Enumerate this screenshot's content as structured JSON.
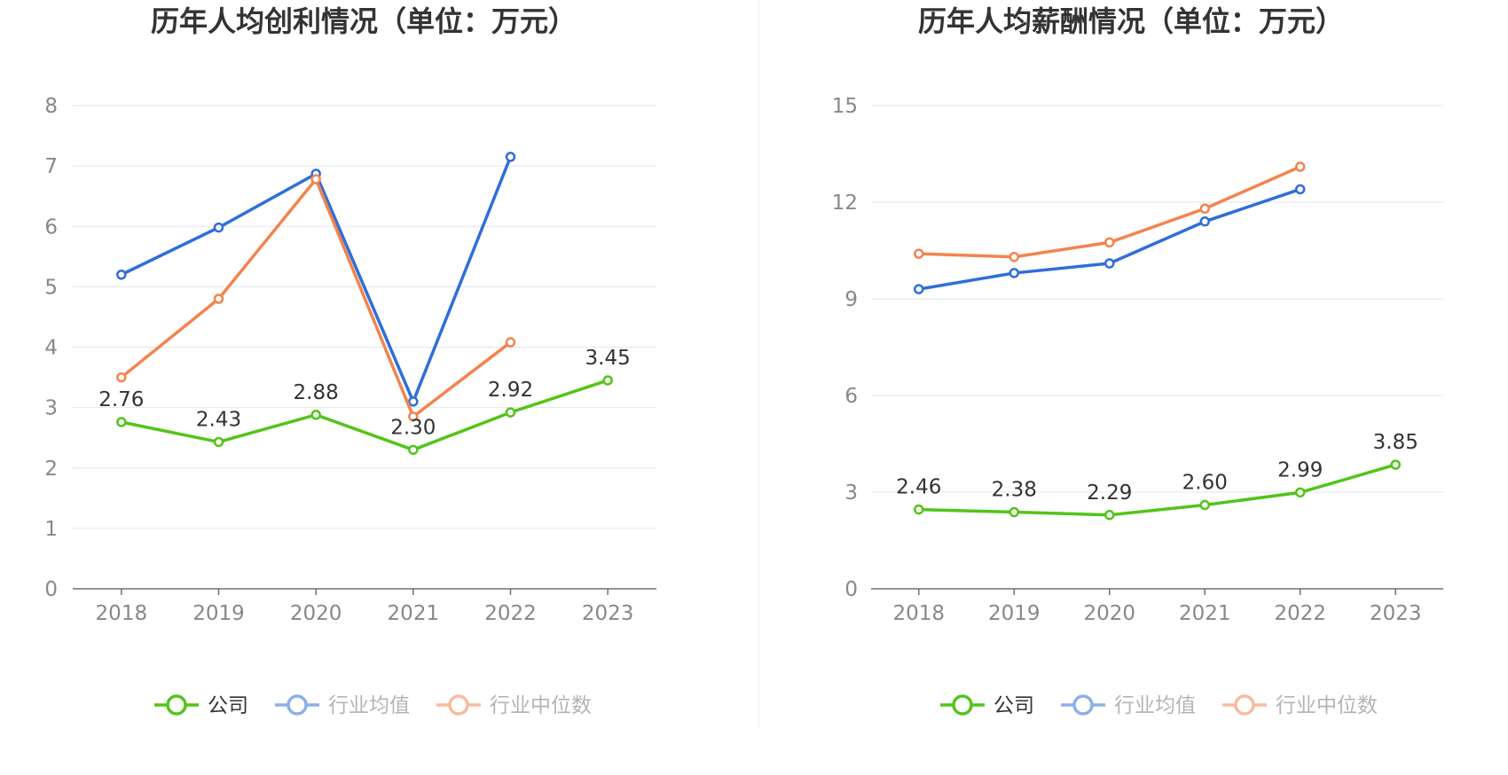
{
  "chart_data": [
    {
      "type": "line",
      "title": "历年人均创利情况（单位：万元）",
      "categories": [
        "2018",
        "2019",
        "2020",
        "2021",
        "2022",
        "2023"
      ],
      "ylim": [
        0,
        8
      ],
      "yticks": [
        0,
        1,
        2,
        3,
        4,
        5,
        6,
        7,
        8
      ],
      "series": [
        {
          "name": "公司",
          "color": "#52c41a",
          "values": [
            2.76,
            2.43,
            2.88,
            2.3,
            2.92,
            3.45
          ],
          "labels": [
            "2.76",
            "2.43",
            "2.88",
            "2.30",
            "2.92",
            "3.45"
          ]
        },
        {
          "name": "行业均值",
          "color": "#2f6ed8",
          "values": [
            5.2,
            5.98,
            6.87,
            3.1,
            7.15,
            null
          ]
        },
        {
          "name": "行业中位数",
          "color": "#f2844e",
          "values": [
            3.5,
            4.8,
            6.78,
            2.85,
            4.08,
            null
          ]
        }
      ],
      "legend": "bottom"
    },
    {
      "type": "line",
      "title": "历年人均薪酬情况（单位：万元）",
      "categories": [
        "2018",
        "2019",
        "2020",
        "2021",
        "2022",
        "2023"
      ],
      "ylim": [
        0,
        15
      ],
      "yticks": [
        0,
        3,
        6,
        9,
        12,
        15
      ],
      "series": [
        {
          "name": "公司",
          "color": "#52c41a",
          "values": [
            2.46,
            2.38,
            2.29,
            2.6,
            2.99,
            3.85
          ],
          "labels": [
            "2.46",
            "2.38",
            "2.29",
            "2.60",
            "2.99",
            "3.85"
          ]
        },
        {
          "name": "行业均值",
          "color": "#2f6ed8",
          "values": [
            9.3,
            9.8,
            10.1,
            11.4,
            12.4,
            null
          ]
        },
        {
          "name": "行业中位数",
          "color": "#f2844e",
          "values": [
            10.4,
            10.3,
            10.75,
            11.8,
            13.1,
            null
          ]
        }
      ],
      "legend": "bottom"
    }
  ]
}
